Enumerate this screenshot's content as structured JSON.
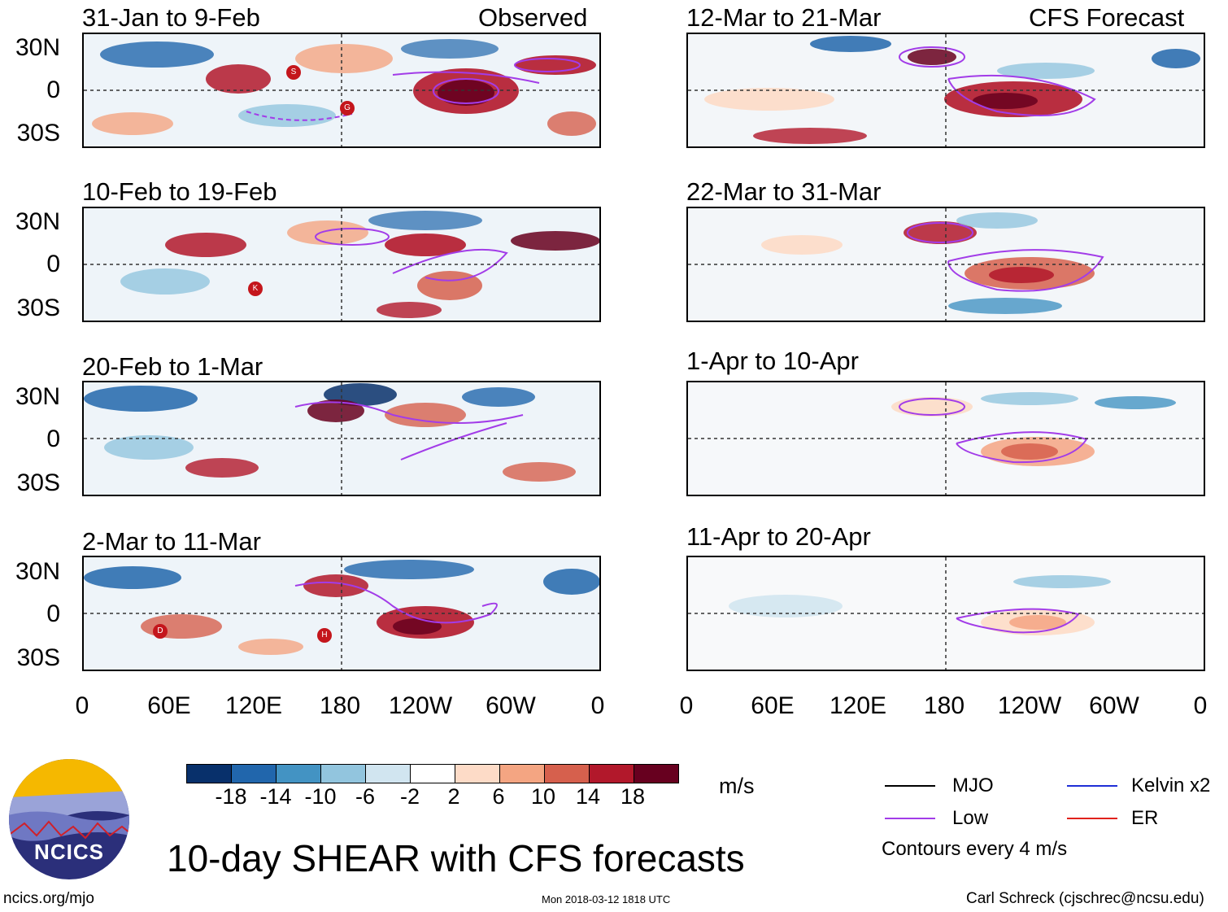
{
  "left_header": "Observed",
  "right_header": "CFS Forecast",
  "panels": {
    "obs": [
      "31-Jan to 9-Feb",
      "10-Feb to 19-Feb",
      "20-Feb to 1-Mar",
      "2-Mar to 11-Mar"
    ],
    "fcst": [
      "12-Mar to 21-Mar",
      "22-Mar to 31-Mar",
      "1-Apr to 10-Apr",
      "11-Apr to 20-Apr"
    ]
  },
  "y_axis": [
    "30N",
    "0",
    "30S"
  ],
  "x_axis": [
    "0",
    "60E",
    "120E",
    "180",
    "120W",
    "60W",
    "0"
  ],
  "storm_markers": {
    "p1": [
      "S",
      "G"
    ],
    "p2": [
      "K"
    ],
    "p4": [
      "D",
      "H"
    ]
  },
  "colorbar": {
    "colors": [
      "#08306b",
      "#2166ac",
      "#4393c3",
      "#92c5de",
      "#d1e5f0",
      "#ffffff",
      "#fddbc7",
      "#f4a582",
      "#d6604d",
      "#b2182b",
      "#67001f"
    ],
    "labels": [
      "-18",
      "-14",
      "-10",
      "-6",
      "-2",
      "2",
      "6",
      "10",
      "14",
      "18"
    ],
    "units": "m/s"
  },
  "legend": {
    "mjo": "MJO",
    "kelvin": "Kelvin x2",
    "low": "Low",
    "er": "ER",
    "note": "Contours every 4 m/s",
    "colors": {
      "mjo": "#000000",
      "kelvin": "#1f2fd6",
      "low": "#a23ce8",
      "er": "#e0221c"
    }
  },
  "logo_text": "NCICS",
  "title": "10-day SHEAR with CFS forecasts",
  "footer": {
    "left": "ncics.org/mjo",
    "center": "Mon 2018-03-12 1818 UTC",
    "right": "Carl Schreck (cjschrec@ncsu.edu)"
  }
}
